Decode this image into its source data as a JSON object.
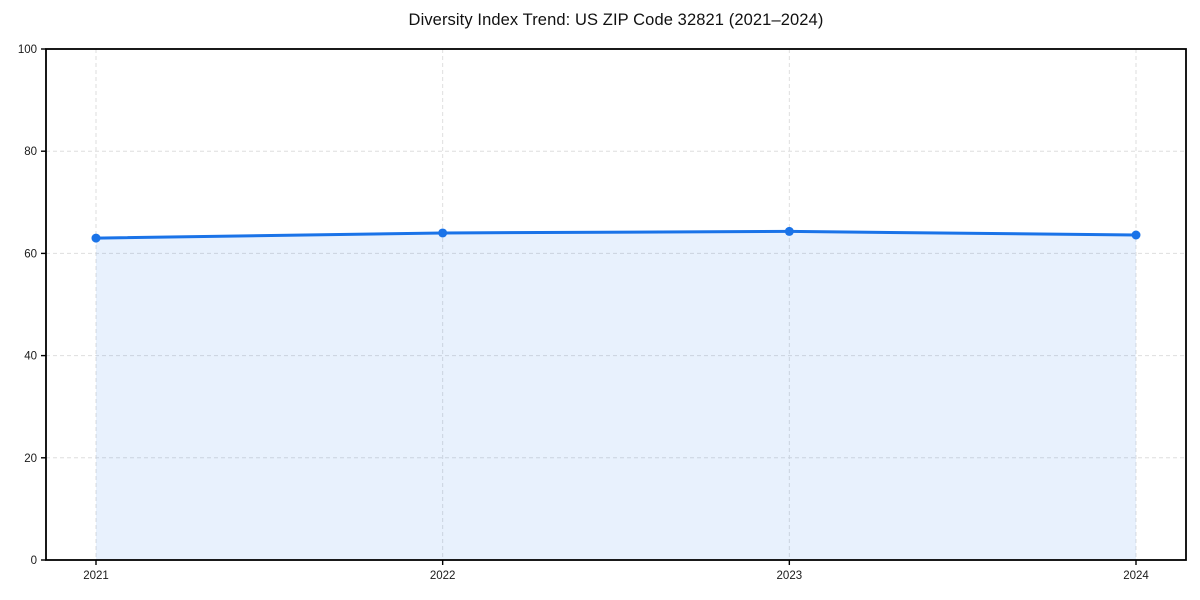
{
  "chart_data": {
    "type": "area",
    "title": "Diversity Index Trend: US ZIP Code 32821 (2021–2024)",
    "categories": [
      "2021",
      "2022",
      "2023",
      "2024"
    ],
    "series": [
      {
        "name": "Diversity Index",
        "values": [
          63,
          64,
          64.3,
          63.6
        ]
      }
    ],
    "xlabel": "",
    "ylabel": "",
    "ylim": [
      0,
      100
    ],
    "yticks": [
      0,
      20,
      40,
      60,
      80,
      100
    ],
    "grid": true,
    "grid_style": "dashed",
    "legend_position": "none",
    "colors": {
      "line": "#1a73e8",
      "marker": "#1a73e8",
      "fill": "#1a73e8",
      "grid": "#dedede",
      "spine": "#000000",
      "tick_text": "#1a1a1a",
      "title_text": "#111111",
      "background": "#ffffff"
    },
    "fill_opacity": 0.1
  }
}
